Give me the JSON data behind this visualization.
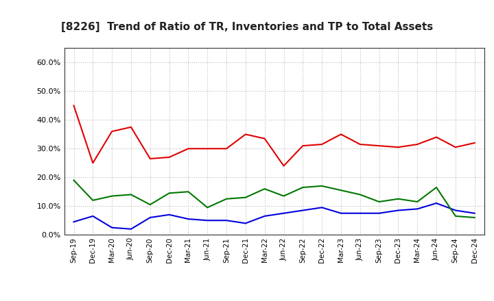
{
  "title": "[8226]  Trend of Ratio of TR, Inventories and TP to Total Assets",
  "labels": [
    "Sep-19",
    "Dec-19",
    "Mar-20",
    "Jun-20",
    "Sep-20",
    "Dec-20",
    "Mar-21",
    "Jun-21",
    "Sep-21",
    "Dec-21",
    "Mar-22",
    "Jun-22",
    "Sep-22",
    "Dec-22",
    "Mar-23",
    "Jun-23",
    "Sep-23",
    "Dec-23",
    "Mar-24",
    "Jun-24",
    "Sep-24",
    "Dec-24"
  ],
  "trade_receivables": [
    45.0,
    25.0,
    36.0,
    37.5,
    26.5,
    27.0,
    30.0,
    30.0,
    30.0,
    35.0,
    33.5,
    24.0,
    31.0,
    31.5,
    35.0,
    31.5,
    31.0,
    30.5,
    31.5,
    34.0,
    30.5,
    32.0
  ],
  "inventories": [
    4.5,
    6.5,
    2.5,
    2.0,
    6.0,
    7.0,
    5.5,
    5.0,
    5.0,
    4.0,
    6.5,
    7.5,
    8.5,
    9.5,
    7.5,
    7.5,
    7.5,
    8.5,
    9.0,
    11.0,
    8.5,
    7.5
  ],
  "trade_payables": [
    19.0,
    12.0,
    13.5,
    14.0,
    10.5,
    14.5,
    15.0,
    9.5,
    12.5,
    13.0,
    16.0,
    13.5,
    16.5,
    17.0,
    15.5,
    14.0,
    11.5,
    12.5,
    11.5,
    16.5,
    6.5,
    6.0
  ],
  "tr_color": "#e00000",
  "inv_color": "#0000dd",
  "tp_color": "#007700",
  "ylim": [
    0,
    65
  ],
  "yticks": [
    0.0,
    10.0,
    20.0,
    30.0,
    40.0,
    50.0,
    60.0
  ],
  "background_color": "#ffffff",
  "grid_color": "#bbbbbb"
}
